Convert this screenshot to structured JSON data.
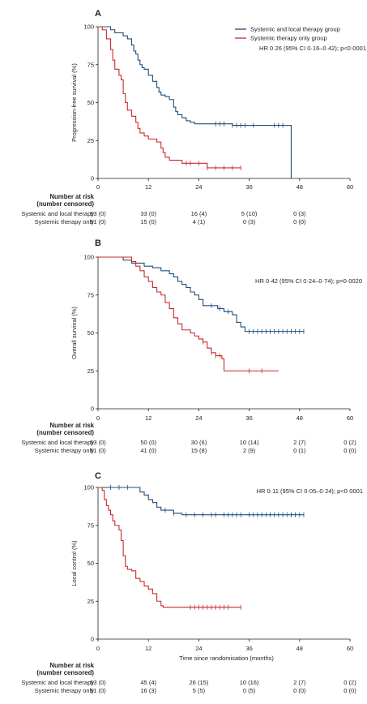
{
  "chart_data": [
    {
      "panel": "A",
      "type": "line",
      "ylabel": "Progression-free survival (%)",
      "xlabel": "",
      "xlim": [
        0,
        60
      ],
      "ylim": [
        0,
        100
      ],
      "x_ticks": [
        0,
        12,
        24,
        36,
        48,
        60
      ],
      "y_ticks": [
        0,
        25,
        50,
        75,
        100
      ],
      "annotation": "HR 0·26 (95% CI 0·16–0·42); p<0·0001",
      "legend": {
        "placement": "top-right",
        "entries": [
          "Systemic and local therapy group",
          "Systemic therapy only group"
        ]
      },
      "series": [
        {
          "name": "Systemic and local therapy group",
          "color": "#1c4f7c",
          "points": [
            [
              0,
              100
            ],
            [
              2,
              100
            ],
            [
              3,
              98
            ],
            [
              4,
              96
            ],
            [
              5,
              96
            ],
            [
              6,
              94
            ],
            [
              7,
              92
            ],
            [
              8,
              88
            ],
            [
              8.5,
              84
            ],
            [
              9,
              82
            ],
            [
              9.5,
              78
            ],
            [
              10,
              75
            ],
            [
              10.5,
              73
            ],
            [
              11,
              72
            ],
            [
              12,
              68
            ],
            [
              13,
              64
            ],
            [
              14,
              60
            ],
            [
              14.5,
              57
            ],
            [
              15,
              55
            ],
            [
              16,
              54
            ],
            [
              17,
              52
            ],
            [
              18,
              47
            ],
            [
              18.5,
              44
            ],
            [
              19,
              42
            ],
            [
              20,
              40
            ],
            [
              21,
              38
            ],
            [
              22,
              37
            ],
            [
              23,
              36
            ],
            [
              31,
              36
            ],
            [
              32,
              35
            ],
            [
              36,
              35
            ],
            [
              46,
              35
            ],
            [
              46,
              32
            ],
            [
              46,
              0
            ]
          ],
          "censor_x": [
            28,
            29,
            30,
            32,
            33,
            34,
            35,
            37,
            42,
            43,
            44
          ]
        },
        {
          "name": "Systemic therapy only group",
          "color": "#c92a2a",
          "points": [
            [
              0,
              100
            ],
            [
              1,
              98
            ],
            [
              2,
              92
            ],
            [
              3,
              85
            ],
            [
              3.5,
              78
            ],
            [
              4,
              72
            ],
            [
              5,
              68
            ],
            [
              5.5,
              65
            ],
            [
              6,
              56
            ],
            [
              6.5,
              50
            ],
            [
              7,
              45
            ],
            [
              8,
              41
            ],
            [
              9,
              37
            ],
            [
              9.5,
              33
            ],
            [
              10,
              30
            ],
            [
              11,
              28
            ],
            [
              12,
              26
            ],
            [
              14,
              24
            ],
            [
              15,
              20
            ],
            [
              15.5,
              17
            ],
            [
              16,
              14
            ],
            [
              17,
              12
            ],
            [
              20,
              12
            ],
            [
              20,
              10
            ],
            [
              26,
              10
            ],
            [
              26,
              7
            ],
            [
              34,
              7
            ]
          ],
          "censor_x": [
            21,
            22,
            24,
            26,
            28,
            30,
            32,
            34
          ]
        }
      ],
      "risk_table": {
        "title": [
          "Number at risk",
          "(number censored)"
        ],
        "rows": [
          {
            "label": "Systemic and local therapy",
            "values": [
              "53 (0)",
              "33 (0)",
              "16 (4)",
              "5 (10)",
              "0 (3)"
            ]
          },
          {
            "label": "Systemic therapy only",
            "values": [
              "51 (0)",
              "15 (0)",
              "4 (1)",
              "0 (3)",
              "0 (0)"
            ]
          }
        ]
      }
    },
    {
      "panel": "B",
      "type": "line",
      "ylabel": "Overall survival (%)",
      "xlabel": "",
      "xlim": [
        0,
        60
      ],
      "ylim": [
        0,
        100
      ],
      "x_ticks": [
        0,
        12,
        24,
        36,
        48,
        60
      ],
      "y_ticks": [
        0,
        25,
        50,
        75,
        100
      ],
      "annotation": "HR 0·42 (95% CI 0·24–0·74); p=0·0020",
      "series": [
        {
          "name": "Systemic and local therapy group",
          "color": "#1c4f7c",
          "points": [
            [
              0,
              100
            ],
            [
              5,
              100
            ],
            [
              6,
              98
            ],
            [
              8,
              96
            ],
            [
              10,
              96
            ],
            [
              11,
              94
            ],
            [
              13,
              93
            ],
            [
              15,
              91
            ],
            [
              17,
              89
            ],
            [
              18,
              87
            ],
            [
              19,
              84
            ],
            [
              20,
              82
            ],
            [
              21,
              80
            ],
            [
              22,
              77
            ],
            [
              23,
              75
            ],
            [
              24,
              72
            ],
            [
              25,
              68
            ],
            [
              28,
              68
            ],
            [
              28.5,
              66
            ],
            [
              30,
              64
            ],
            [
              32,
              62
            ],
            [
              33,
              57
            ],
            [
              34,
              54
            ],
            [
              35,
              51
            ],
            [
              42,
              51
            ],
            [
              49,
              51
            ]
          ],
          "censor_x": [
            27,
            29,
            31,
            36,
            37,
            38,
            39,
            40,
            41,
            42,
            43,
            44,
            45,
            46,
            47,
            48,
            49
          ]
        },
        {
          "name": "Systemic therapy only group",
          "color": "#c92a2a",
          "points": [
            [
              0,
              100
            ],
            [
              7,
              100
            ],
            [
              8,
              97
            ],
            [
              9,
              94
            ],
            [
              10,
              91
            ],
            [
              11,
              87
            ],
            [
              12,
              84
            ],
            [
              13,
              80
            ],
            [
              14,
              77
            ],
            [
              15,
              75
            ],
            [
              16,
              70
            ],
            [
              17,
              66
            ],
            [
              18,
              60
            ],
            [
              19,
              56
            ],
            [
              20,
              52
            ],
            [
              22,
              50
            ],
            [
              23,
              48
            ],
            [
              24,
              46
            ],
            [
              25,
              44
            ],
            [
              26,
              40
            ],
            [
              27,
              37
            ],
            [
              28,
              35
            ],
            [
              29.5,
              33
            ],
            [
              30,
              33
            ],
            [
              30,
              25
            ],
            [
              43,
              25
            ]
          ],
          "censor_x": [
            25,
            27,
            28,
            29,
            36,
            39
          ]
        }
      ],
      "risk_table": {
        "title": [
          "Number at risk",
          "(number censored)"
        ],
        "rows": [
          {
            "label": "Systemic and local therapy",
            "values": [
              "53 (0)",
              "50 (0)",
              "30 (6)",
              "10 (14)",
              "2 (7)",
              "0 (2)"
            ]
          },
          {
            "label": "Systemic therapy only",
            "values": [
              "51 (0)",
              "41 (0)",
              "15 (8)",
              "2 (9)",
              "0 (1)",
              "0 (0)"
            ]
          }
        ]
      }
    },
    {
      "panel": "C",
      "type": "line",
      "ylabel": "Local control (%)",
      "xlabel": "Time since randomisation (months)",
      "xlim": [
        0,
        60
      ],
      "ylim": [
        0,
        100
      ],
      "x_ticks": [
        0,
        12,
        24,
        36,
        48,
        60
      ],
      "y_ticks": [
        0,
        25,
        50,
        75,
        100
      ],
      "annotation": "HR 0·11 (95% CI 0·05–0·24); p<0·0001",
      "series": [
        {
          "name": "Systemic and local therapy group",
          "color": "#1c4f7c",
          "points": [
            [
              0,
              100
            ],
            [
              9,
              100
            ],
            [
              10,
              97
            ],
            [
              11,
              95
            ],
            [
              12,
              92
            ],
            [
              13,
              90
            ],
            [
              14,
              87
            ],
            [
              15,
              85
            ],
            [
              17,
              85
            ],
            [
              18,
              83
            ],
            [
              20,
              83
            ],
            [
              20,
              82
            ],
            [
              49,
              82
            ]
          ],
          "censor_x": [
            3,
            5,
            7,
            16,
            18,
            21,
            23,
            25,
            27,
            28,
            30,
            31,
            32,
            33,
            34,
            36,
            37,
            38,
            39,
            40,
            41,
            42,
            43,
            44,
            45,
            46,
            47,
            48,
            49
          ]
        },
        {
          "name": "Systemic therapy only group",
          "color": "#c92a2a",
          "points": [
            [
              0,
              100
            ],
            [
              1,
              98
            ],
            [
              1.5,
              92
            ],
            [
              2,
              88
            ],
            [
              2.5,
              85
            ],
            [
              3,
              82
            ],
            [
              3.5,
              78
            ],
            [
              4,
              75
            ],
            [
              5,
              72
            ],
            [
              5.5,
              65
            ],
            [
              6,
              55
            ],
            [
              6.5,
              48
            ],
            [
              7,
              46
            ],
            [
              8,
              45
            ],
            [
              9,
              40
            ],
            [
              10,
              38
            ],
            [
              11,
              35
            ],
            [
              12,
              33
            ],
            [
              13,
              30
            ],
            [
              14,
              25
            ],
            [
              15,
              22
            ],
            [
              15.5,
              21
            ],
            [
              34,
              21
            ]
          ],
          "censor_x": [
            22,
            23,
            24,
            25,
            26,
            27,
            28,
            29,
            30,
            31,
            34
          ]
        }
      ],
      "risk_table": {
        "title": [
          "Number at risk",
          "(number censored)"
        ],
        "rows": [
          {
            "label": "Systemic and local therapy",
            "values": [
              "53 (0)",
              "45 (4)",
              "26 (15)",
              "10 (16)",
              "2 (7)",
              "0 (2)"
            ]
          },
          {
            "label": "Systemic therapy only",
            "values": [
              "51 (0)",
              "16 (3)",
              "5 (5)",
              "0 (5)",
              "0 (0)",
              "0 (0)"
            ]
          }
        ]
      }
    }
  ]
}
